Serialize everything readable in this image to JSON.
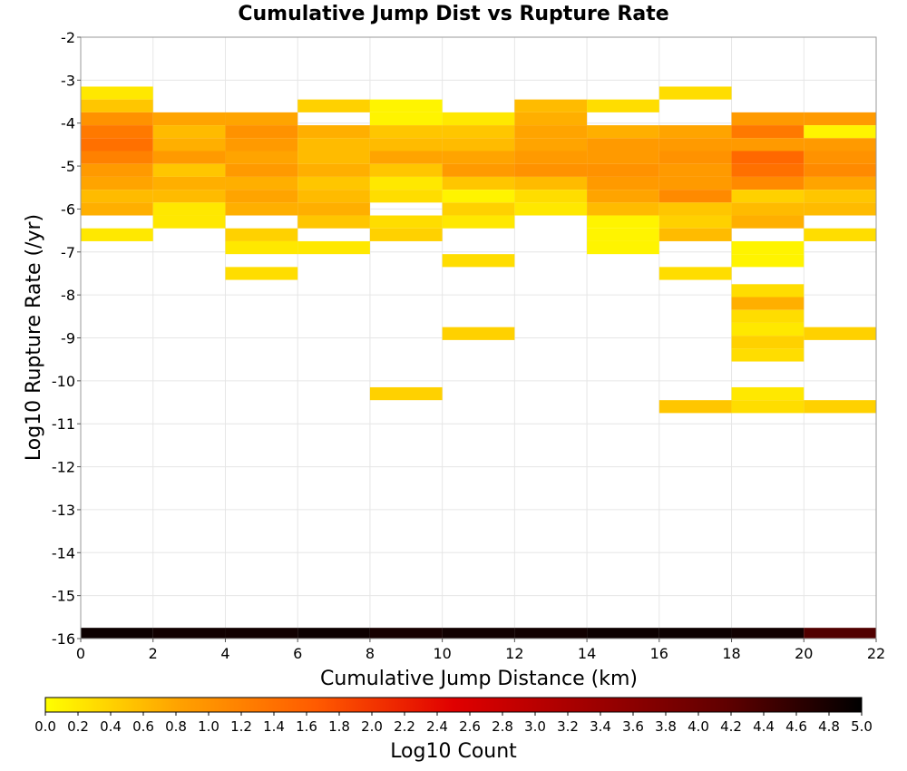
{
  "chart_data": {
    "type": "heatmap",
    "title": "Cumulative Jump Dist vs Rupture Rate",
    "xlabel": "Cumulative Jump Distance (km)",
    "ylabel": "Log10 Rupture Rate (/yr)",
    "xlim": [
      0,
      22
    ],
    "ylim": [
      -16,
      -2
    ],
    "x_ticks": [
      "0",
      "2",
      "4",
      "6",
      "8",
      "10",
      "12",
      "14",
      "16",
      "18",
      "20",
      "22"
    ],
    "y_ticks": [
      "-2",
      "-3",
      "-4",
      "-5",
      "-6",
      "-7",
      "-8",
      "-9",
      "-10",
      "-11",
      "-12",
      "-13",
      "-14",
      "-15",
      "-16"
    ],
    "bin_width_x": 2,
    "bin_height_y": 0.3,
    "grid": true,
    "colorbar": {
      "label": "Log10 Count",
      "min": 0.0,
      "max": 5.0,
      "ticks": [
        "0.0",
        "0.2",
        "0.4",
        "0.6",
        "0.8",
        "1.0",
        "1.2",
        "1.4",
        "1.6",
        "1.8",
        "2.0",
        "2.2",
        "2.4",
        "2.6",
        "2.8",
        "3.0",
        "3.2",
        "3.4",
        "3.6",
        "3.8",
        "4.0",
        "4.2",
        "4.4",
        "4.6",
        "4.8",
        "5.0"
      ],
      "colormap": [
        "#ffff00",
        "#ffa000",
        "#ff5a00",
        "#e00000",
        "#a00000",
        "#600000",
        "#000000"
      ]
    },
    "columns": [
      {
        "x0": 0,
        "x1": 2,
        "cells": [
          [
            -3.3,
            0.2
          ],
          [
            -3.6,
            0.5
          ],
          [
            -3.9,
            1.0
          ],
          [
            -4.2,
            1.3
          ],
          [
            -4.5,
            1.4
          ],
          [
            -4.8,
            1.2
          ],
          [
            -5.1,
            0.9
          ],
          [
            -5.4,
            0.8
          ],
          [
            -5.7,
            0.6
          ],
          [
            -6.0,
            0.7
          ],
          [
            -6.6,
            0.2
          ]
        ]
      },
      {
        "x0": 2,
        "x1": 4,
        "cells": [
          [
            -3.9,
            0.8
          ],
          [
            -4.2,
            0.6
          ],
          [
            -4.5,
            0.7
          ],
          [
            -4.8,
            0.9
          ],
          [
            -5.1,
            0.5
          ],
          [
            -5.4,
            0.7
          ],
          [
            -5.7,
            0.6
          ],
          [
            -6.0,
            0.2
          ],
          [
            -6.3,
            0.2
          ]
        ]
      },
      {
        "x0": 4,
        "x1": 6,
        "cells": [
          [
            -3.9,
            0.8
          ],
          [
            -4.2,
            1.0
          ],
          [
            -4.5,
            0.9
          ],
          [
            -4.8,
            0.8
          ],
          [
            -5.1,
            0.9
          ],
          [
            -5.4,
            0.7
          ],
          [
            -5.7,
            0.8
          ],
          [
            -6.0,
            0.7
          ],
          [
            -6.6,
            0.4
          ],
          [
            -6.9,
            0.2
          ],
          [
            -7.5,
            0.3
          ]
        ]
      },
      {
        "x0": 6,
        "x1": 8,
        "cells": [
          [
            -3.6,
            0.4
          ],
          [
            -4.2,
            0.7
          ],
          [
            -4.5,
            0.6
          ],
          [
            -4.8,
            0.6
          ],
          [
            -5.1,
            0.7
          ],
          [
            -5.4,
            0.5
          ],
          [
            -5.7,
            0.6
          ],
          [
            -6.0,
            0.7
          ],
          [
            -6.3,
            0.5
          ],
          [
            -6.9,
            0.2
          ]
        ]
      },
      {
        "x0": 8,
        "x1": 10,
        "cells": [
          [
            -3.6,
            0.1
          ],
          [
            -3.9,
            0.1
          ],
          [
            -4.2,
            0.5
          ],
          [
            -4.5,
            0.6
          ],
          [
            -4.8,
            0.8
          ],
          [
            -5.1,
            0.5
          ],
          [
            -5.4,
            0.2
          ],
          [
            -5.7,
            0.3
          ],
          [
            -6.3,
            0.3
          ],
          [
            -6.6,
            0.4
          ],
          [
            -10.3,
            0.4
          ]
        ]
      },
      {
        "x0": 10,
        "x1": 12,
        "cells": [
          [
            -3.9,
            0.2
          ],
          [
            -4.2,
            0.5
          ],
          [
            -4.5,
            0.6
          ],
          [
            -4.8,
            0.8
          ],
          [
            -5.1,
            0.9
          ],
          [
            -5.4,
            0.5
          ],
          [
            -5.7,
            0.1
          ],
          [
            -6.0,
            0.4
          ],
          [
            -6.3,
            0.2
          ],
          [
            -7.2,
            0.3
          ],
          [
            -8.9,
            0.4
          ]
        ]
      },
      {
        "x0": 12,
        "x1": 14,
        "cells": [
          [
            -3.6,
            0.6
          ],
          [
            -3.9,
            0.7
          ],
          [
            -4.2,
            0.8
          ],
          [
            -4.5,
            0.8
          ],
          [
            -4.8,
            0.9
          ],
          [
            -5.1,
            1.0
          ],
          [
            -5.4,
            0.6
          ],
          [
            -5.7,
            0.3
          ],
          [
            -6.0,
            0.2
          ]
        ]
      },
      {
        "x0": 14,
        "x1": 16,
        "cells": [
          [
            -3.6,
            0.3
          ],
          [
            -4.2,
            0.7
          ],
          [
            -4.5,
            0.9
          ],
          [
            -4.8,
            0.9
          ],
          [
            -5.1,
            1.0
          ],
          [
            -5.4,
            0.9
          ],
          [
            -5.7,
            0.8
          ],
          [
            -6.0,
            0.6
          ],
          [
            -6.3,
            0.1
          ],
          [
            -6.6,
            0.1
          ],
          [
            -6.9,
            0.1
          ]
        ]
      },
      {
        "x0": 16,
        "x1": 18,
        "cells": [
          [
            -3.3,
            0.3
          ],
          [
            -4.2,
            0.8
          ],
          [
            -4.5,
            0.9
          ],
          [
            -4.8,
            1.0
          ],
          [
            -5.1,
            0.9
          ],
          [
            -5.4,
            0.9
          ],
          [
            -5.7,
            1.1
          ],
          [
            -6.0,
            0.5
          ],
          [
            -6.3,
            0.4
          ],
          [
            -6.6,
            0.6
          ],
          [
            -7.5,
            0.3
          ],
          [
            -10.6,
            0.5
          ]
        ]
      },
      {
        "x0": 18,
        "x1": 20,
        "cells": [
          [
            -3.9,
            0.9
          ],
          [
            -4.2,
            1.3
          ],
          [
            -4.5,
            0.9
          ],
          [
            -4.8,
            1.5
          ],
          [
            -5.1,
            1.4
          ],
          [
            -5.4,
            1.1
          ],
          [
            -5.7,
            0.4
          ],
          [
            -6.0,
            0.6
          ],
          [
            -6.3,
            0.7
          ],
          [
            -6.9,
            0.1
          ],
          [
            -7.2,
            0.1
          ],
          [
            -7.9,
            0.3
          ],
          [
            -8.2,
            0.7
          ],
          [
            -8.5,
            0.3
          ],
          [
            -8.8,
            0.2
          ],
          [
            -9.1,
            0.4
          ],
          [
            -9.4,
            0.3
          ],
          [
            -10.3,
            0.2
          ],
          [
            -10.6,
            0.3
          ]
        ]
      },
      {
        "x0": 20,
        "x1": 22,
        "cells": [
          [
            -3.9,
            0.9
          ],
          [
            -4.2,
            0.1
          ],
          [
            -4.5,
            0.9
          ],
          [
            -4.8,
            1.0
          ],
          [
            -5.1,
            1.1
          ],
          [
            -5.4,
            0.8
          ],
          [
            -5.7,
            0.5
          ],
          [
            -6.0,
            0.6
          ],
          [
            -6.6,
            0.3
          ],
          [
            -8.9,
            0.4
          ],
          [
            -10.6,
            0.4
          ]
        ]
      }
    ],
    "bottom_row": {
      "y": -15.9,
      "values": [
        4.9,
        4.85,
        4.85,
        4.9,
        4.8,
        4.85,
        4.85,
        4.9,
        4.9,
        4.85,
        4.3
      ]
    }
  }
}
